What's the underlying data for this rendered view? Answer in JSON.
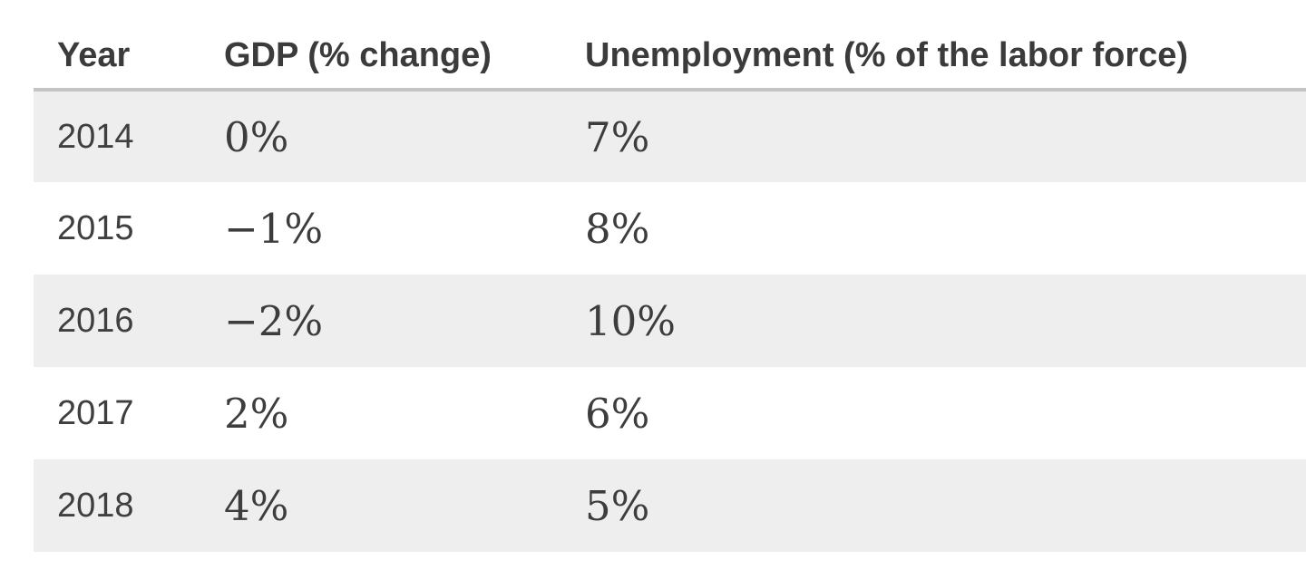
{
  "table": {
    "headers": [
      "Year",
      "GDP (% change)",
      "Unemployment (% of the labor force)"
    ],
    "rows": [
      {
        "year": "2014",
        "gdp": "0%",
        "unemployment": "7%"
      },
      {
        "year": "2015",
        "gdp": "−1%",
        "unemployment": "8%"
      },
      {
        "year": "2016",
        "gdp": "−2%",
        "unemployment": "10%"
      },
      {
        "year": "2017",
        "gdp": "2%",
        "unemployment": "6%"
      },
      {
        "year": "2018",
        "gdp": "4%",
        "unemployment": "5%"
      }
    ]
  },
  "colors": {
    "stripe_background": "#eeeeee",
    "row_background": "#ffffff",
    "header_border": "#c4c4c4",
    "header_text": "#3b3b3b",
    "cell_text": "#3d3d3d"
  },
  "chart_data": {
    "type": "table",
    "title": "",
    "columns": [
      "Year",
      "GDP (% change)",
      "Unemployment (% of the labor force)"
    ],
    "x": [
      2014,
      2015,
      2016,
      2017,
      2018
    ],
    "series": [
      {
        "name": "GDP (% change)",
        "values": [
          0,
          -1,
          -2,
          2,
          4
        ],
        "unit": "%"
      },
      {
        "name": "Unemployment (% of the labor force)",
        "values": [
          7,
          8,
          10,
          6,
          5
        ],
        "unit": "%"
      }
    ],
    "layout": {
      "striped_rows": true,
      "grid": false,
      "header_rule": true
    }
  }
}
